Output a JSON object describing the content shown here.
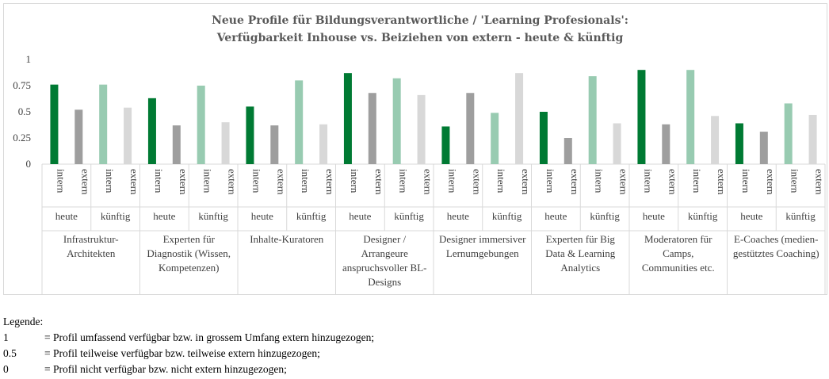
{
  "chart_data": {
    "type": "bar",
    "title": [
      "Neue Profile für Bildungsverantwortliche / 'Learning Profesionals':",
      "Verfügbarkeit Inhouse vs. Beiziehen von extern - heute & künftig"
    ],
    "ylim": [
      0,
      1
    ],
    "yticks": [
      "0",
      "0.25",
      "0.5",
      "0.75",
      "1"
    ],
    "tick_values": [
      0,
      0.25,
      0.5,
      0.75,
      1
    ],
    "grid": false,
    "sub_labels": [
      "intern",
      "extern"
    ],
    "time_labels": [
      "heute",
      "künftig"
    ],
    "series": [
      {
        "name": "heute intern",
        "color": "#007a33"
      },
      {
        "name": "heute extern",
        "color": "#9e9e9e"
      },
      {
        "name": "künftig intern",
        "color": "#98cbb1"
      },
      {
        "name": "künftig extern",
        "color": "#d8d8d8"
      }
    ],
    "groups": [
      {
        "label": [
          "Infrastruktur-",
          "Architekten"
        ],
        "values": [
          0.76,
          0.52,
          0.76,
          0.54
        ]
      },
      {
        "label": [
          "Experten für",
          "Diagnostik (Wissen,",
          "Kompetenzen)"
        ],
        "values": [
          0.63,
          0.37,
          0.75,
          0.4
        ]
      },
      {
        "label": [
          "Inhalte-Kuratoren"
        ],
        "values": [
          0.55,
          0.37,
          0.8,
          0.38
        ]
      },
      {
        "label": [
          "Designer /",
          "Arrangeure",
          "anspruchsvoller BL-",
          "Designs"
        ],
        "values": [
          0.87,
          0.68,
          0.82,
          0.66
        ]
      },
      {
        "label": [
          "Designer immersiver",
          "Lernumgebungen"
        ],
        "values": [
          0.36,
          0.68,
          0.49,
          0.87
        ]
      },
      {
        "label": [
          "Experten für Big",
          "Data & Learning",
          "Analytics"
        ],
        "values": [
          0.5,
          0.25,
          0.84,
          0.39
        ]
      },
      {
        "label": [
          "Moderatoren für",
          "Camps,",
          "Communities etc."
        ],
        "values": [
          0.9,
          0.38,
          0.9,
          0.46
        ]
      },
      {
        "label": [
          "E-Coaches (medien-",
          "gestütztes Coaching)"
        ],
        "values": [
          0.39,
          0.31,
          0.58,
          0.47
        ]
      }
    ]
  },
  "legend": {
    "title": "Legende:",
    "items": [
      {
        "key": "1",
        "text": "= Profil umfassend verfügbar bzw. in grossem Umfang extern hinzugezogen;"
      },
      {
        "key": "0.5",
        "text": "= Profil teilweise verfügbar bzw. teilweise extern hinzugezogen;"
      },
      {
        "key": "0",
        "text": "= Profil nicht verfügbar bzw. nicht extern hinzugezogen;"
      }
    ]
  }
}
